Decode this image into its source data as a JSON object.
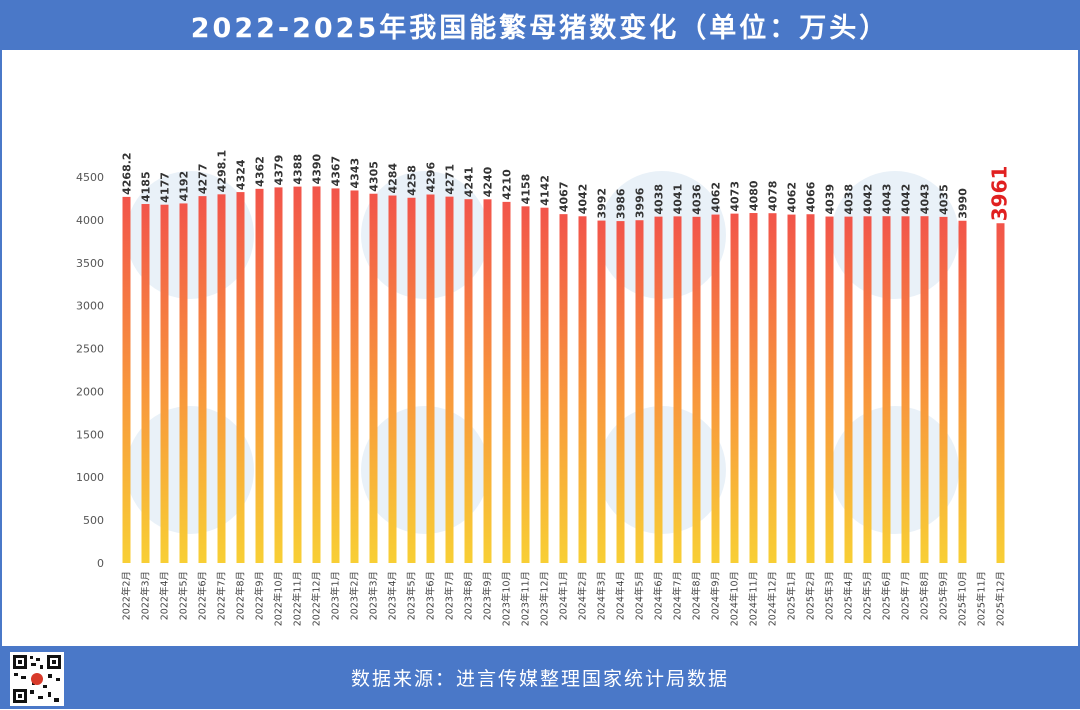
{
  "header": {
    "title": "2022-2025年我国能繁母猪数变化（单位：万头）"
  },
  "footer": {
    "source": "数据来源：进言传媒整理国家统计局数据"
  },
  "icons": {
    "qr_code": "qr-code-icon",
    "watermark": "jinyan-zhiku-logo-watermark"
  },
  "colors": {
    "header_bg": "#4a78c8",
    "bar_top": "#f2544a",
    "bar_bottom": "#f8cf35",
    "highlight_label": "#e02020"
  },
  "chart_data": {
    "type": "bar",
    "title": "",
    "xlabel": "",
    "ylabel": "",
    "ylim": [
      0,
      4500
    ],
    "yticks": [
      0,
      500,
      1000,
      1500,
      2000,
      2500,
      3000,
      3500,
      4000,
      4500
    ],
    "grid": false,
    "categories": [
      "2022年2月",
      "2022年3月",
      "2022年4月",
      "2022年5月",
      "2022年6月",
      "2022年7月",
      "2022年8月",
      "2022年9月",
      "2022年10月",
      "2022年11月",
      "2022年12月",
      "2023年1月",
      "2023年2月",
      "2023年3月",
      "2023年4月",
      "2023年5月",
      "2023年6月",
      "2023年7月",
      "2023年8月",
      "2023年9月",
      "2023年10月",
      "2023年11月",
      "2023年12月",
      "2024年1月",
      "2024年2月",
      "2024年3月",
      "2024年4月",
      "2024年5月",
      "2024年6月",
      "2024年7月",
      "2024年8月",
      "2024年9月",
      "2024年10月",
      "2024年11月",
      "2024年12月",
      "2025年1月",
      "2025年2月",
      "2025年3月",
      "2025年4月",
      "2025年5月",
      "2025年6月",
      "2025年7月",
      "2025年8月",
      "2025年9月",
      "2025年10月",
      "2025年11月",
      "2025年12月"
    ],
    "values": [
      4268.2,
      4185,
      4177,
      4192,
      4277,
      4298.1,
      4324,
      4362,
      4379,
      4388,
      4390,
      4367,
      4343,
      4305,
      4284,
      4258,
      4296,
      4271,
      4241,
      4240,
      4210,
      4158,
      4142,
      4067,
      4042,
      3992,
      3986,
      3996,
      4038,
      4041,
      4036,
      4062,
      4073,
      4080,
      4078,
      4062,
      4066,
      4039,
      4038,
      4042,
      4043,
      4042,
      4043,
      4035,
      3990,
      null,
      3961
    ],
    "labels": [
      "4268.2",
      "4185",
      "4177",
      "4192",
      "4277",
      "4298.1",
      "4324",
      "4362",
      "4379",
      "4388",
      "4390",
      "4367",
      "4343",
      "4305",
      "4284",
      "4258",
      "4296",
      "4271",
      "4241",
      "4240",
      "4210",
      "4158",
      "4142",
      "4067",
      "4042",
      "3992",
      "3986",
      "3996",
      "4038",
      "4041",
      "4036",
      "4062",
      "4073",
      "4080",
      "4078",
      "4062",
      "4066",
      "4039",
      "4038",
      "4042",
      "4043",
      "4042",
      "4043",
      "4035",
      "3990",
      "",
      "3961"
    ],
    "highlight_index": 46
  }
}
